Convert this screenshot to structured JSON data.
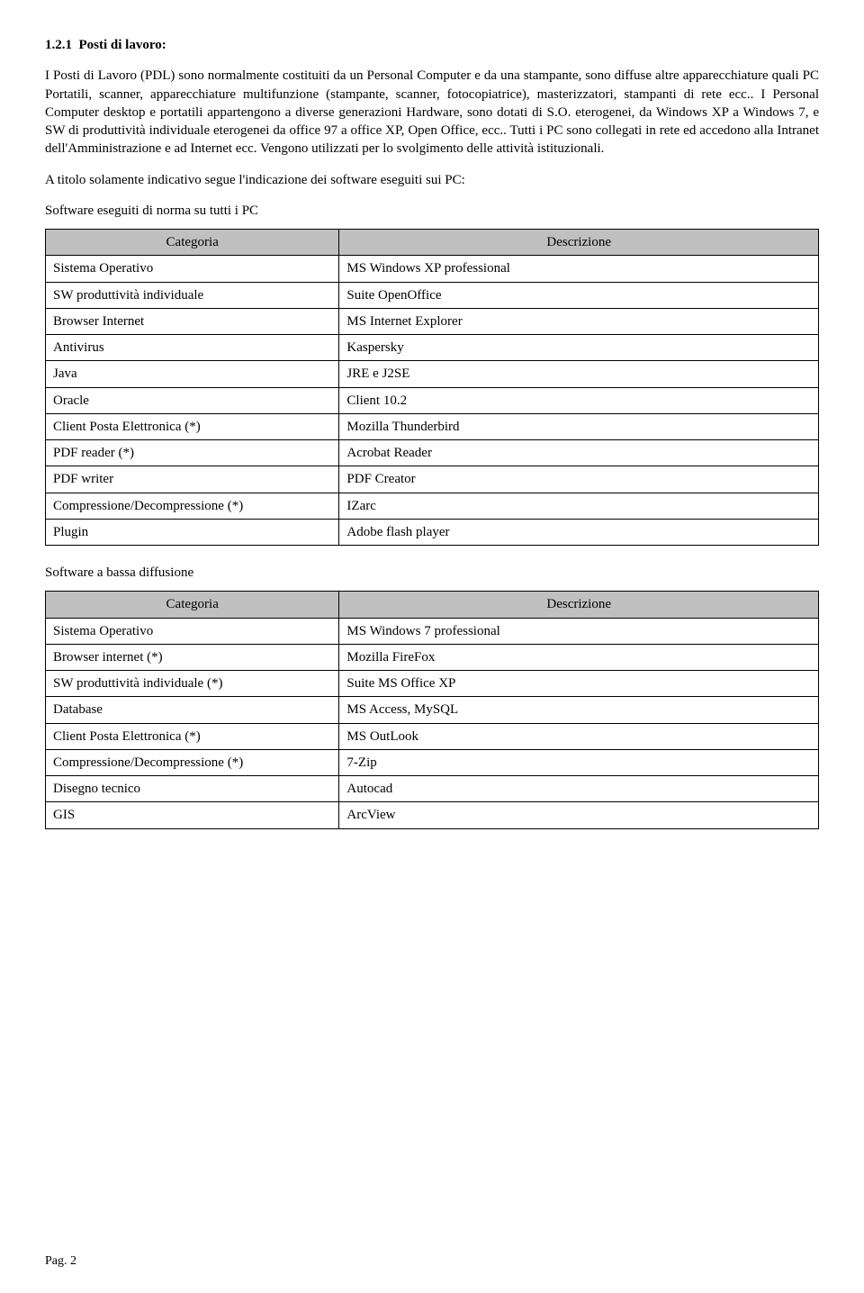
{
  "section_number": "1.2.1",
  "section_title": "Posti di lavoro:",
  "para1": "I Posti di Lavoro (PDL) sono normalmente costituiti da un Personal Computer e da una stampante, sono diffuse altre apparecchiature quali PC Portatili, scanner, apparecchiature multifunzione (stampante, scanner, fotocopiatrice), masterizzatori, stampanti di rete  ecc.. I Personal Computer desktop e portatili appartengono a diverse generazioni Hardware, sono dotati di S.O. eterogenei, da Windows XP a Windows 7, e SW di produttività individuale eterogenei da office 97 a office XP, Open Office, ecc.. Tutti i PC sono collegati in rete ed accedono alla Intranet dell'Amministrazione e ad Internet ecc. Vengono utilizzati per lo svolgimento delle attività istituzionali.",
  "para2": "A titolo solamente indicativo segue l'indicazione dei software eseguiti sui PC:",
  "table1_caption": "Software eseguiti di norma su tutti i PC",
  "table_headers": {
    "cat": "Categoria",
    "desc": "Descrizione"
  },
  "table1_rows": [
    {
      "cat": "Sistema Operativo",
      "desc": "MS Windows XP professional"
    },
    {
      "cat": "SW produttività individuale",
      "desc": "Suite OpenOffice"
    },
    {
      "cat": "Browser Internet",
      "desc": "MS Internet Explorer"
    },
    {
      "cat": "Antivirus",
      "desc": "Kaspersky"
    },
    {
      "cat": "Java",
      "desc": "JRE e J2SE"
    },
    {
      "cat": "Oracle",
      "desc": "Client 10.2"
    },
    {
      "cat": "Client Posta Elettronica (*)",
      "desc": "Mozilla Thunderbird"
    },
    {
      "cat": "PDF reader (*)",
      "desc": "Acrobat Reader"
    },
    {
      "cat": "PDF writer",
      "desc": "PDF Creator"
    },
    {
      "cat": "Compressione/Decompressione (*)",
      "desc": "IZarc"
    },
    {
      "cat": "Plugin",
      "desc": "Adobe flash player"
    }
  ],
  "table2_caption": "Software a bassa diffusione",
  "table2_rows": [
    {
      "cat": "Sistema Operativo",
      "desc": "MS Windows 7 professional"
    },
    {
      "cat": "Browser internet (*)",
      "desc": "Mozilla FireFox"
    },
    {
      "cat": "SW produttività individuale (*)",
      "desc": "Suite MS Office XP"
    },
    {
      "cat": "Database",
      "desc": "MS Access, MySQL"
    },
    {
      "cat": "Client Posta Elettronica (*)",
      "desc": "MS OutLook"
    },
    {
      "cat": "Compressione/Decompressione (*)",
      "desc": "7-Zip"
    },
    {
      "cat": "Disegno tecnico",
      "desc": "Autocad"
    },
    {
      "cat": "GIS",
      "desc": "ArcView"
    }
  ],
  "footer": "Pag. 2"
}
